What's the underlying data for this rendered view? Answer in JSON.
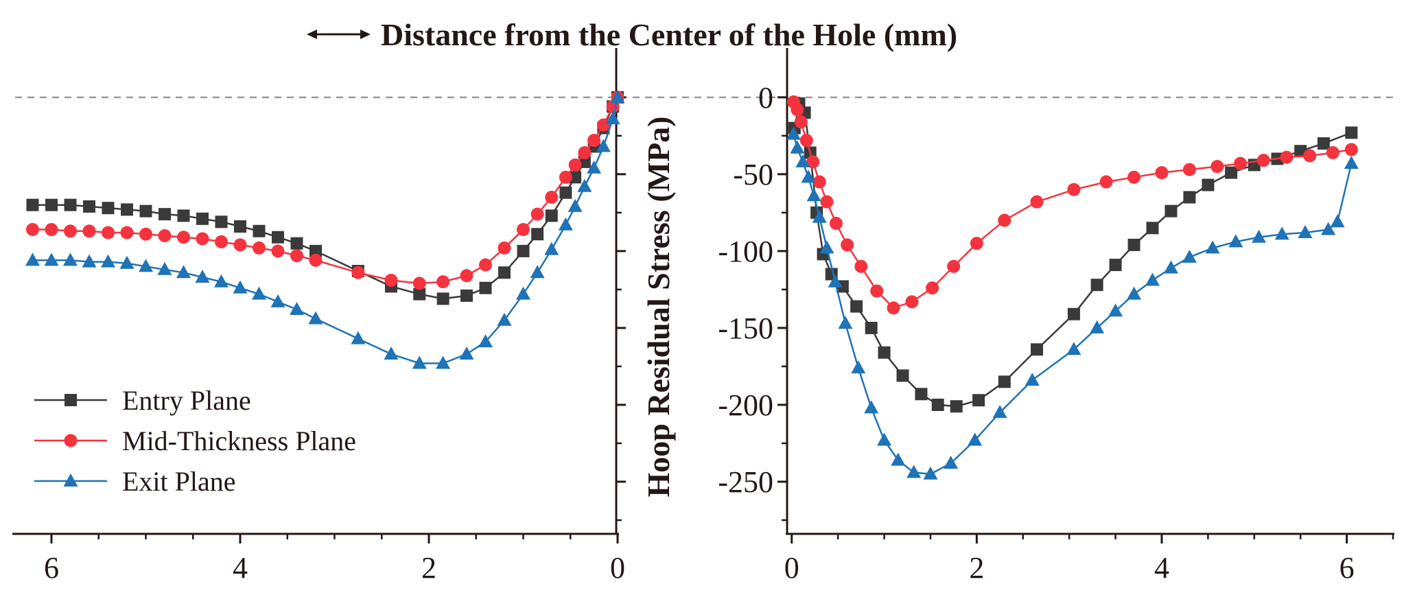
{
  "chart_data": {
    "type": "line",
    "title": "Distance from the Center of the Hole (mm)",
    "title_icon": "double-arrow-icon",
    "ylabel": "Hoop Residual Stress (MPa)",
    "ylim": [
      -275,
      20
    ],
    "yticks": [
      0,
      -50,
      -100,
      -150,
      -200,
      -250
    ],
    "ytick_labels": [
      "0",
      "-50",
      "-100",
      "-150",
      "-200",
      "-250"
    ],
    "reference_line": 0,
    "legend": {
      "position": "bottom-left",
      "entries": [
        "Entry Plane",
        "Mid-Thickness Plane",
        "Exit Plane"
      ]
    },
    "colors": {
      "entry": "#3a3a3a",
      "mid": "#f5333f",
      "exit": "#1f73b7",
      "axis": "#231815",
      "reference": "#9a9a9a"
    },
    "panels": [
      {
        "name": "left",
        "xlim": [
          6.4,
          0
        ],
        "x_reversed": true,
        "xticks": [
          6,
          4,
          2,
          0
        ],
        "xtick_labels": [
          "6",
          "4",
          "2",
          "0"
        ],
        "series": [
          {
            "name": "Entry Plane",
            "marker": "square",
            "x": [
              6.2,
              6.0,
              5.8,
              5.6,
              5.4,
              5.2,
              5.0,
              4.8,
              4.6,
              4.4,
              4.2,
              4.0,
              3.8,
              3.6,
              3.4,
              3.2,
              2.75,
              2.4,
              2.1,
              1.85,
              1.6,
              1.4,
              1.2,
              1.0,
              0.85,
              0.7,
              0.55,
              0.45,
              0.35,
              0.25,
              0.15,
              0.05,
              0.0
            ],
            "y": [
              -70,
              -70,
              -70,
              -71,
              -72,
              -73,
              -74,
              -76,
              -77,
              -79,
              -81,
              -84,
              -87,
              -91,
              -95,
              -100,
              -113,
              -123,
              -128,
              -131,
              -129,
              -124,
              -114,
              -100,
              -89,
              -77,
              -62,
              -52,
              -42,
              -32,
              -20,
              -6,
              0
            ]
          },
          {
            "name": "Mid-Thickness Plane",
            "marker": "circle",
            "x": [
              6.2,
              6.0,
              5.8,
              5.6,
              5.4,
              5.2,
              5.0,
              4.8,
              4.6,
              4.4,
              4.2,
              4.0,
              3.8,
              3.6,
              3.4,
              3.2,
              2.75,
              2.4,
              2.1,
              1.85,
              1.6,
              1.4,
              1.2,
              1.0,
              0.85,
              0.7,
              0.55,
              0.45,
              0.35,
              0.25,
              0.15,
              0.05,
              0.0
            ],
            "y": [
              -86,
              -86,
              -87,
              -87,
              -88,
              -88,
              -89,
              -90,
              -91,
              -92,
              -94,
              -96,
              -98,
              -100,
              -103,
              -106,
              -114,
              -119,
              -121,
              -120,
              -116,
              -109,
              -98,
              -86,
              -76,
              -65,
              -52,
              -44,
              -36,
              -28,
              -18,
              -6,
              0
            ]
          },
          {
            "name": "Exit Plane",
            "marker": "triangle",
            "x": [
              6.2,
              6.0,
              5.8,
              5.6,
              5.4,
              5.2,
              5.0,
              4.8,
              4.6,
              4.4,
              4.2,
              4.0,
              3.8,
              3.6,
              3.4,
              3.2,
              2.75,
              2.4,
              2.1,
              1.85,
              1.6,
              1.4,
              1.2,
              1.0,
              0.85,
              0.7,
              0.55,
              0.45,
              0.35,
              0.25,
              0.15,
              0.05,
              0.0
            ],
            "y": [
              -106,
              -106,
              -106,
              -107,
              -107,
              -108,
              -110,
              -112,
              -114,
              -117,
              -120,
              -124,
              -128,
              -133,
              -138,
              -144,
              -157,
              -167,
              -173,
              -173,
              -167,
              -159,
              -145,
              -128,
              -114,
              -99,
              -83,
              -71,
              -58,
              -46,
              -32,
              -14,
              0
            ]
          }
        ]
      },
      {
        "name": "right",
        "xlim": [
          -0.05,
          6.5
        ],
        "x_reversed": false,
        "xticks": [
          0,
          2,
          4,
          6
        ],
        "xtick_labels": [
          "0",
          "2",
          "4",
          "6"
        ],
        "series": [
          {
            "name": "Entry Plane",
            "marker": "square",
            "x": [
              0.03,
              0.08,
              0.14,
              0.2,
              0.27,
              0.34,
              0.43,
              0.55,
              0.7,
              0.86,
              1.0,
              1.2,
              1.4,
              1.58,
              1.78,
              2.02,
              2.3,
              2.65,
              3.05,
              3.3,
              3.5,
              3.7,
              3.9,
              4.1,
              4.3,
              4.5,
              4.75,
              5.0,
              5.25,
              5.5,
              5.75,
              6.05
            ],
            "y": [
              -20,
              -4,
              -10,
              -36,
              -75,
              -102,
              -115,
              -123,
              -136,
              -150,
              -166,
              -181,
              -193,
              -200,
              -201,
              -197,
              -185,
              -164,
              -141,
              -122,
              -109,
              -96,
              -85,
              -74,
              -65,
              -57,
              -49,
              -44,
              -40,
              -35,
              -30,
              -23
            ]
          },
          {
            "name": "Mid-Thickness Plane",
            "marker": "circle",
            "x": [
              0.02,
              0.06,
              0.1,
              0.16,
              0.23,
              0.3,
              0.38,
              0.48,
              0.6,
              0.75,
              0.92,
              1.1,
              1.3,
              1.52,
              1.75,
              2.0,
              2.3,
              2.65,
              3.05,
              3.4,
              3.7,
              4.0,
              4.3,
              4.6,
              4.85,
              5.1,
              5.35,
              5.6,
              5.85,
              6.05
            ],
            "y": [
              -3,
              -8,
              -16,
              -28,
              -42,
              -55,
              -68,
              -82,
              -96,
              -110,
              -126,
              -137,
              -133,
              -124,
              -110,
              -95,
              -80,
              -68,
              -60,
              -55,
              -52,
              -49,
              -47,
              -45,
              -43,
              -41,
              -39,
              -38,
              -36,
              -34
            ]
          },
          {
            "name": "Exit Plane",
            "marker": "triangle",
            "x": [
              0.02,
              0.06,
              0.12,
              0.18,
              0.24,
              0.3,
              0.38,
              0.47,
              0.58,
              0.72,
              0.86,
              1.0,
              1.15,
              1.32,
              1.5,
              1.72,
              1.98,
              2.25,
              2.6,
              3.05,
              3.3,
              3.5,
              3.7,
              3.9,
              4.1,
              4.3,
              4.55,
              4.8,
              5.05,
              5.3,
              5.55,
              5.8,
              5.9,
              6.05
            ],
            "y": [
              -24,
              -33,
              -42,
              -52,
              -64,
              -78,
              -98,
              -120,
              -147,
              -176,
              -202,
              -223,
              -236,
              -244,
              -245,
              -238,
              -223,
              -205,
              -184,
              -164,
              -150,
              -139,
              -128,
              -119,
              -111,
              -104,
              -98,
              -94,
              -91,
              -89,
              -88,
              -86,
              -81,
              -43
            ]
          }
        ]
      }
    ]
  }
}
